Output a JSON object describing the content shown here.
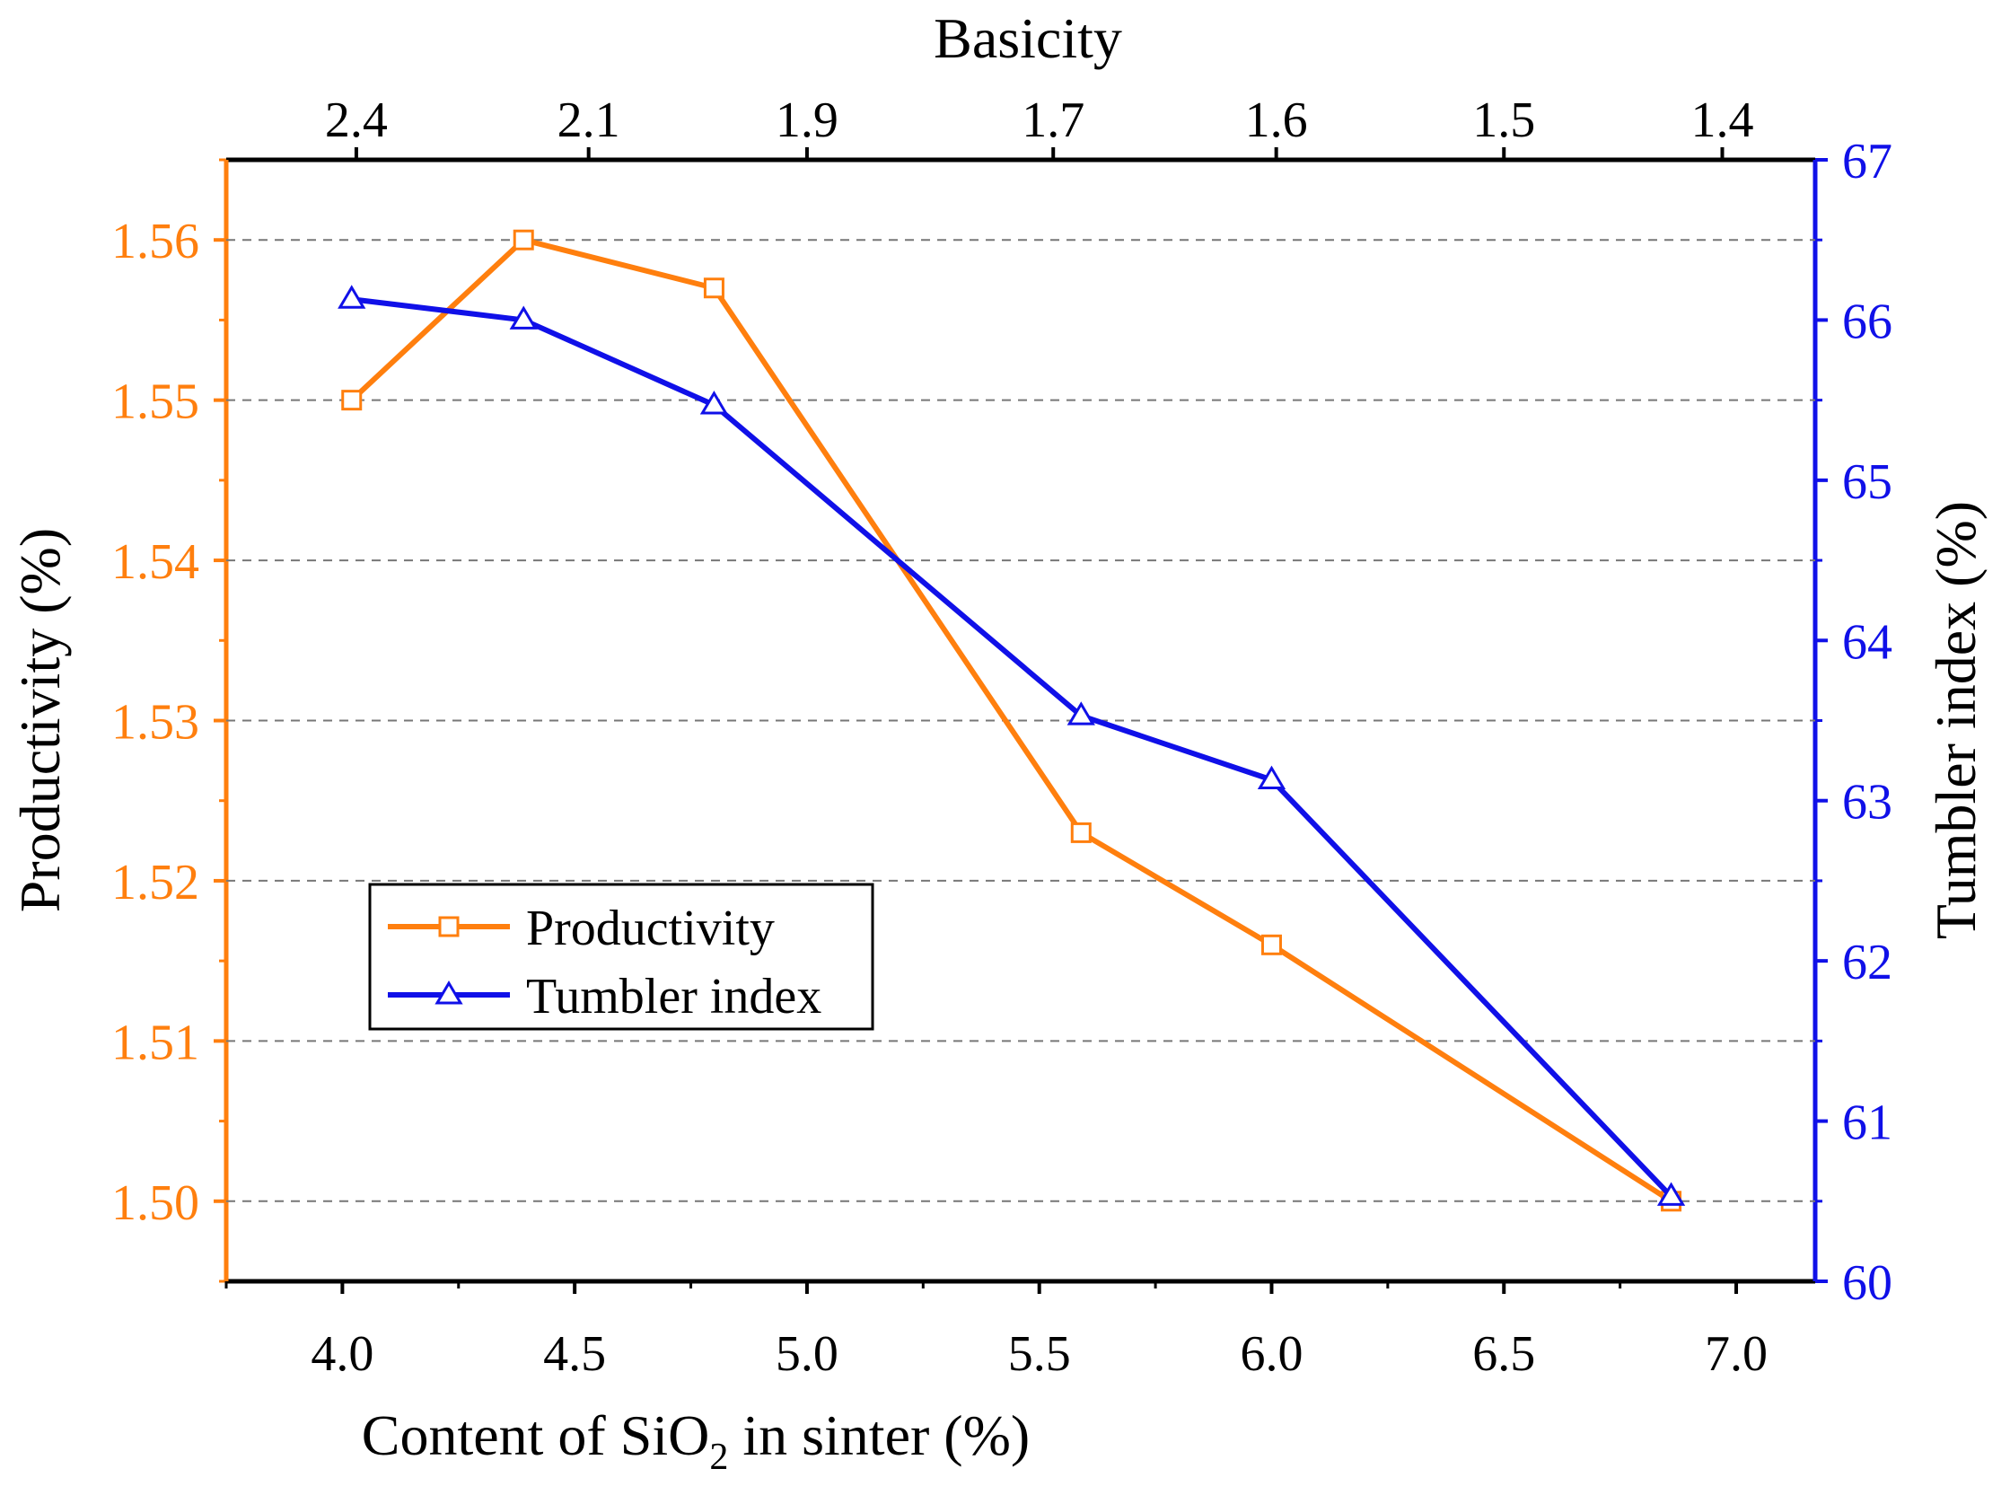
{
  "chart_data": {
    "type": "line",
    "title": "",
    "xlabel_prefix": "Content of SiO",
    "xlabel_sub": "2",
    "xlabel_suffix": " in sinter (%)",
    "ylabel_left": "Productivity (%)",
    "ylabel_right": "Tumbler index (%)",
    "top_axis_label": "Basicity",
    "xlim": [
      3.75,
      7.17
    ],
    "ylim_left": [
      1.495,
      1.565
    ],
    "ylim_right": [
      60,
      67
    ],
    "x_ticks": [
      "4.0",
      "4.5",
      "5.0",
      "5.5",
      "6.0",
      "6.5",
      "7.0"
    ],
    "top_ticks": [
      {
        "label": "2.4",
        "x": 4.03
      },
      {
        "label": "2.1",
        "x": 4.53
      },
      {
        "label": "1.9",
        "x": 5.0
      },
      {
        "label": "1.7",
        "x": 5.53
      },
      {
        "label": "1.6",
        "x": 6.01
      },
      {
        "label": "1.5",
        "x": 6.5
      },
      {
        "label": "1.4",
        "x": 6.97
      }
    ],
    "y_left_ticks": [
      "1.50",
      "1.51",
      "1.52",
      "1.53",
      "1.54",
      "1.55",
      "1.56"
    ],
    "y_right_ticks": [
      "60",
      "61",
      "62",
      "63",
      "64",
      "65",
      "66",
      "67"
    ],
    "grid": "horizontal dashed at left-axis major ticks",
    "legend_position": "lower-left",
    "series": [
      {
        "name": "Productivity",
        "axis": "left",
        "color": "#FF7F0E",
        "marker": "square",
        "x": [
          4.02,
          4.39,
          4.8,
          5.59,
          6.0,
          6.86
        ],
        "y": [
          1.55,
          1.56,
          1.557,
          1.523,
          1.516,
          1.5
        ]
      },
      {
        "name": "Tumbler index",
        "axis": "right",
        "color": "#1010E8",
        "marker": "triangle",
        "x": [
          4.02,
          4.39,
          4.8,
          5.59,
          6.0,
          6.86
        ],
        "y": [
          66.13,
          66.0,
          65.47,
          63.53,
          63.13,
          60.53
        ]
      }
    ]
  },
  "colors": {
    "left_axis": "#FF7F0E",
    "right_axis": "#1010E8",
    "frame": "#000000",
    "grid": "#777777"
  }
}
